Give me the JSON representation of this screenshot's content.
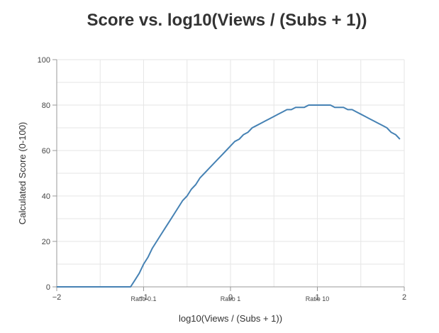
{
  "chart_data": {
    "type": "line",
    "title": "Score vs. log10(Views / (Subs + 1))",
    "xlabel": "log10(Views / (Subs + 1))",
    "ylabel": "Calculated Score (0-100)",
    "xlim": [
      -2,
      2
    ],
    "ylim": [
      0,
      100
    ],
    "xticks": [
      -2,
      -1,
      0,
      1,
      2
    ],
    "xtick_labels": [
      "−2",
      "−1",
      "0",
      "1",
      "2"
    ],
    "yticks": [
      0,
      20,
      40,
      60,
      80,
      100
    ],
    "ytick_labels": [
      "0",
      "20",
      "40",
      "60",
      "80",
      "100"
    ],
    "ratio_markers": [
      {
        "x": -1,
        "label": "Ratio 0.1"
      },
      {
        "x": 0,
        "label": "Ratio 1"
      },
      {
        "x": 1,
        "label": "Ratio 10"
      }
    ],
    "grid": true,
    "legend": "none",
    "line_color": "#4682b4",
    "series": [
      {
        "x": [
          -2,
          -1.15,
          -1.1,
          -1.05,
          -1.0,
          -0.95,
          -0.9,
          -0.85,
          -0.8,
          -0.75,
          -0.7,
          -0.65,
          -0.6,
          -0.55,
          -0.5,
          -0.45,
          -0.4,
          -0.35,
          -0.3,
          -0.25,
          -0.2,
          -0.15,
          -0.1,
          -0.05,
          0,
          0.05,
          0.1,
          0.15,
          0.2,
          0.25,
          0.3,
          0.35,
          0.4,
          0.45,
          0.5,
          0.55,
          0.6,
          0.65,
          0.7,
          0.75,
          0.8,
          0.85,
          0.9,
          0.95,
          1.0,
          1.05,
          1.1,
          1.15,
          1.2,
          1.25,
          1.3,
          1.35,
          1.4,
          1.45,
          1.5,
          1.55,
          1.6,
          1.65,
          1.7,
          1.75,
          1.8,
          1.85,
          1.9,
          1.95
        ],
        "values": [
          0,
          0,
          3,
          6,
          10,
          13,
          17,
          20,
          23,
          26,
          29,
          32,
          35,
          38,
          40,
          43,
          45,
          48,
          50,
          52,
          54,
          56,
          58,
          60,
          62,
          64,
          65,
          67,
          68,
          70,
          71,
          72,
          73,
          74,
          75,
          76,
          77,
          78,
          78,
          79,
          79,
          79,
          80,
          80,
          80,
          80,
          80,
          80,
          79,
          79,
          79,
          78,
          78,
          77,
          76,
          75,
          74,
          73,
          72,
          71,
          70,
          68,
          67,
          65
        ]
      }
    ]
  }
}
